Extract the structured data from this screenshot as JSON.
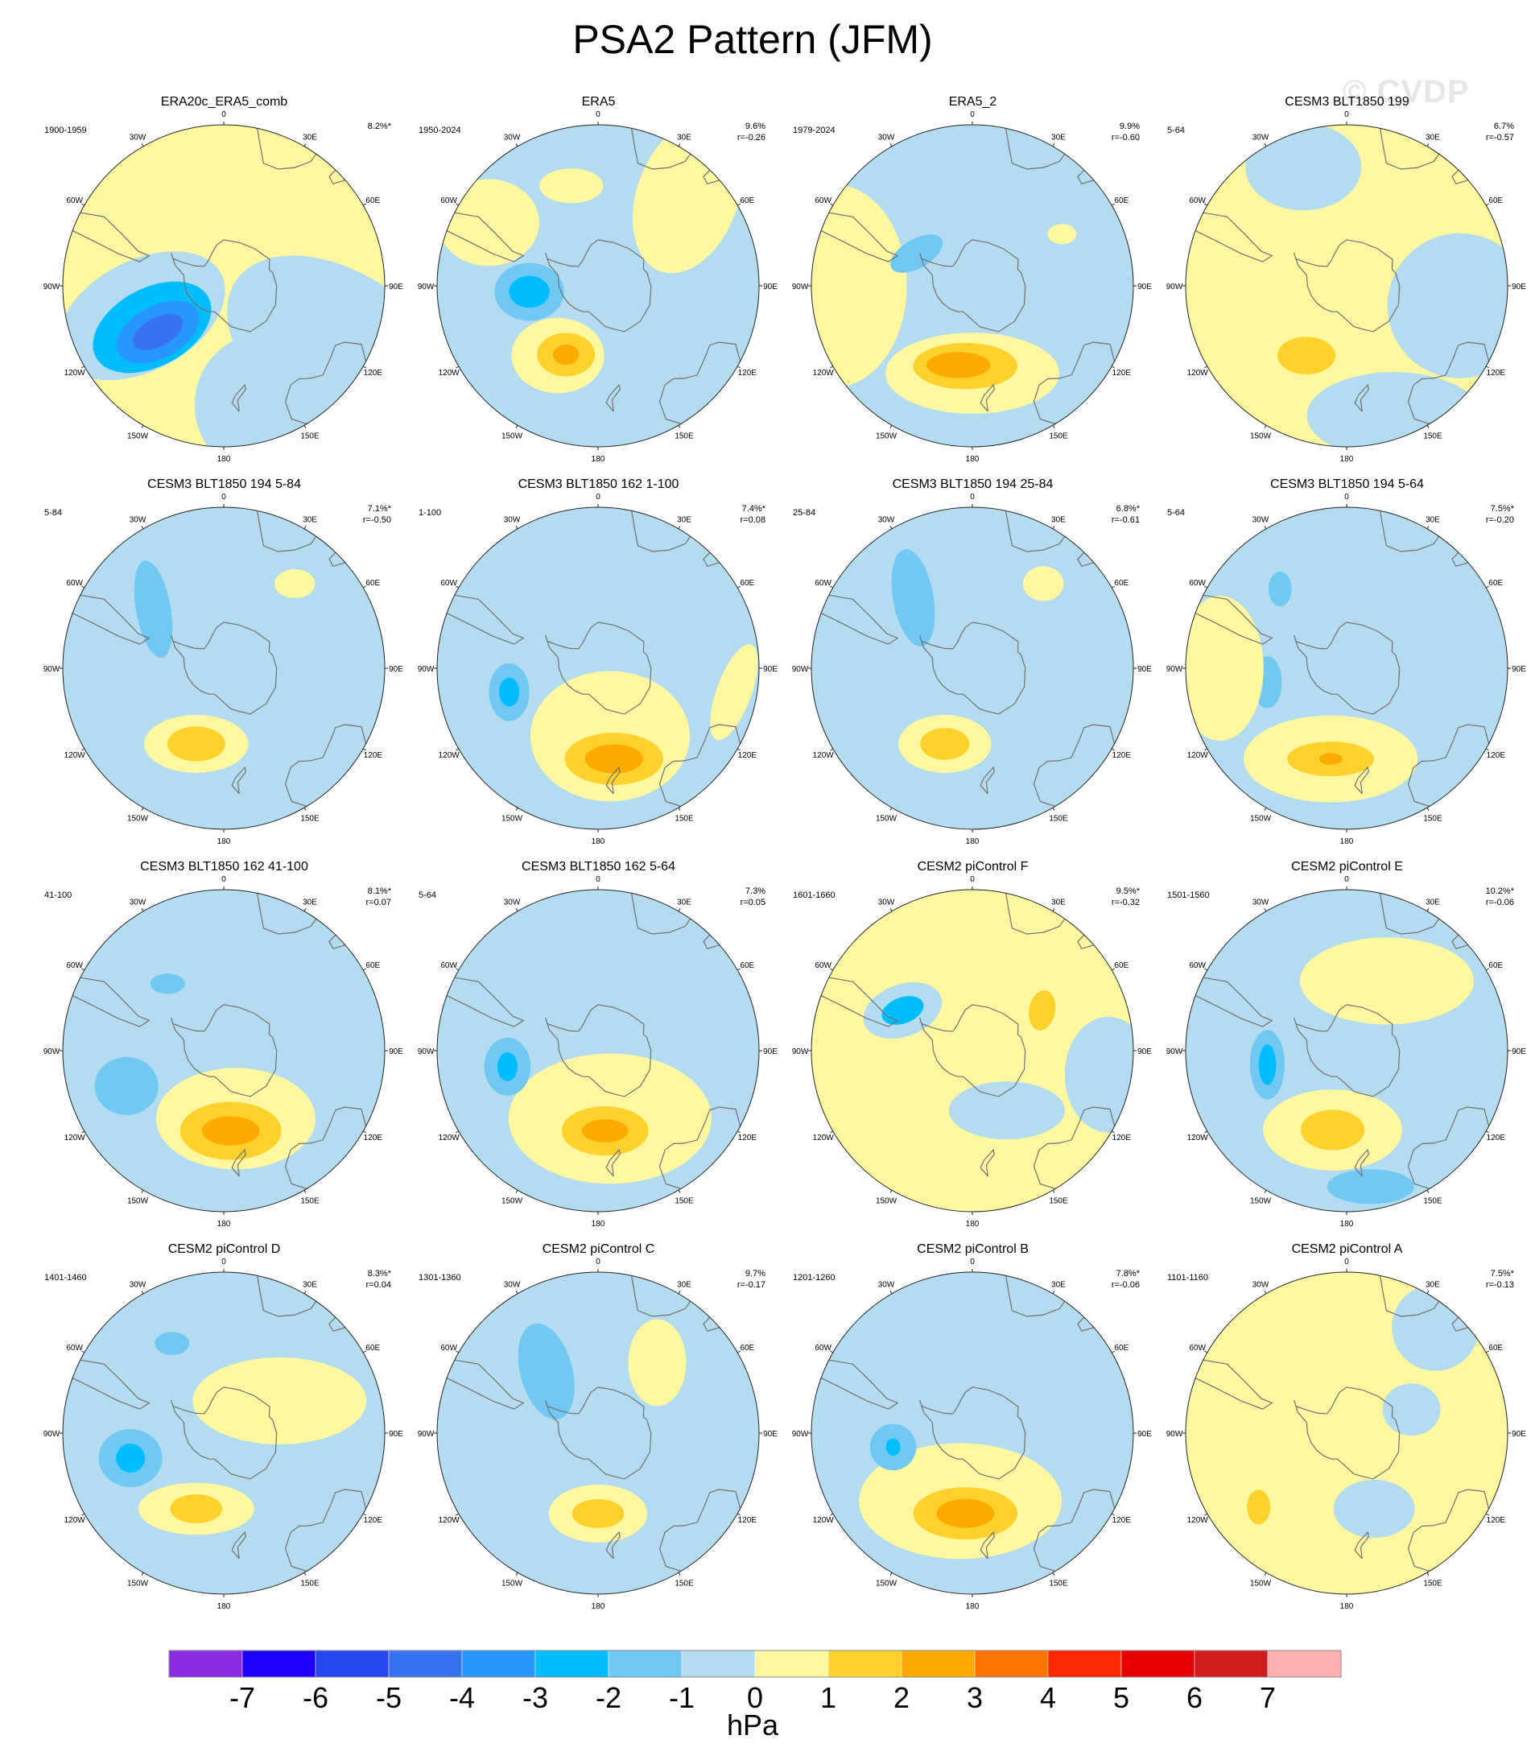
{
  "title": "PSA2 Pattern (JFM)",
  "watermark": "© CVDP",
  "colors": {
    "ocean_neutral_neg": "#b4dcf0",
    "ocean_neutral_pos": "#fff8a0",
    "coast": "#707070"
  },
  "chart_data": {
    "type": "contour-map",
    "projection": "south-polar-stereographic",
    "longitude_labels": [
      "0",
      "30E",
      "60E",
      "90E",
      "120E",
      "150E",
      "180",
      "150W",
      "120W",
      "90W",
      "60W",
      "30W"
    ],
    "colorbar": {
      "unit": "hPa",
      "ticks": [
        "-7",
        "-6",
        "-5",
        "-4",
        "-3",
        "-2",
        "-1",
        "0",
        "1",
        "2",
        "3",
        "4",
        "5",
        "6",
        "7"
      ],
      "colors": [
        "#8a2be2",
        "#1e00ff",
        "#2846f0",
        "#3773f0",
        "#2796ff",
        "#00bdff",
        "#71c8f2",
        "#b4dcf0",
        "#fff8a0",
        "#ffd12c",
        "#ffaa00",
        "#ff7300",
        "#ff2800",
        "#e60000",
        "#d01c1c",
        "#ffb1b1"
      ]
    },
    "panels": [
      {
        "title": "ERA20c_ERA5_comb",
        "period": "1900-1959",
        "pct": "8.2%*",
        "r": "",
        "base": "pos",
        "blobs": [
          {
            "lat": -52,
            "lon": -110,
            "w": 0.62,
            "h": 0.38,
            "rot": -28,
            "level": -1
          },
          {
            "lat": -54,
            "lon": -120,
            "w": 0.44,
            "h": 0.27,
            "rot": -28,
            "level": -2
          },
          {
            "lat": -55,
            "lon": -125,
            "w": 0.31,
            "h": 0.18,
            "rot": -28,
            "level": -3
          },
          {
            "lat": -55,
            "lon": -125,
            "w": 0.19,
            "h": 0.1,
            "rot": -28,
            "level": -4
          },
          {
            "lat": -30,
            "lon": 120,
            "w": 0.9,
            "h": 0.55,
            "rot": 35,
            "level": -1
          },
          {
            "lat": -35,
            "lon": 160,
            "w": 0.5,
            "h": 0.5,
            "rot": 0,
            "level": -1
          }
        ]
      },
      {
        "title": "ERA5",
        "period": "1950-2024",
        "pct": "9.6%",
        "r": "r=-0.26",
        "base": "neg",
        "blobs": [
          {
            "lat": -55,
            "lon": -150,
            "w": 0.32,
            "h": 0.26,
            "rot": 0,
            "level": 1
          },
          {
            "lat": -57,
            "lon": -155,
            "w": 0.2,
            "h": 0.15,
            "rot": 0,
            "level": 2
          },
          {
            "lat": -57,
            "lon": -155,
            "w": 0.09,
            "h": 0.07,
            "rot": 0,
            "level": 3
          },
          {
            "lat": -60,
            "lon": -95,
            "w": 0.24,
            "h": 0.2,
            "rot": 0,
            "level": -1
          },
          {
            "lat": -60,
            "lon": -95,
            "w": 0.14,
            "h": 0.11,
            "rot": 0,
            "level": -2
          },
          {
            "lat": -35,
            "lon": 45,
            "w": 0.35,
            "h": 0.55,
            "rot": 20,
            "level": 1
          },
          {
            "lat": -35,
            "lon": -60,
            "w": 0.35,
            "h": 0.3,
            "rot": 0,
            "level": 1
          },
          {
            "lat": -45,
            "lon": -15,
            "w": 0.22,
            "h": 0.12,
            "rot": 0,
            "level": 1
          }
        ]
      },
      {
        "title": "ERA5_2",
        "period": "1979-2024",
        "pct": "9.9%",
        "r": "r=-0.60",
        "base": "neg",
        "blobs": [
          {
            "lat": -52,
            "lon": -180,
            "w": 0.6,
            "h": 0.28,
            "rot": 0,
            "level": 1
          },
          {
            "lat": -55,
            "lon": -175,
            "w": 0.36,
            "h": 0.16,
            "rot": 0,
            "level": 2
          },
          {
            "lat": -55,
            "lon": -170,
            "w": 0.22,
            "h": 0.09,
            "rot": 0,
            "level": 3
          },
          {
            "lat": -30,
            "lon": -90,
            "w": 0.5,
            "h": 0.7,
            "rot": 0,
            "level": 1
          },
          {
            "lat": -62,
            "lon": -60,
            "w": 0.2,
            "h": 0.1,
            "rot": -30,
            "level": -1
          },
          {
            "lat": -45,
            "lon": 60,
            "w": 0.1,
            "h": 0.07,
            "rot": 0,
            "level": 1
          }
        ]
      },
      {
        "title": "CESM3 BLT1850 199",
        "period": "5-64",
        "pct": "6.7%",
        "r": "r=-0.57",
        "base": "pos",
        "blobs": [
          {
            "lat": -55,
            "lon": -150,
            "w": 0.34,
            "h": 0.22,
            "rot": 0,
            "level": 1
          },
          {
            "lat": -55,
            "lon": -150,
            "w": 0.2,
            "h": 0.13,
            "rot": 0,
            "level": 2
          },
          {
            "lat": -42,
            "lon": 55,
            "w": 0.16,
            "h": 0.12,
            "rot": 30,
            "level": 1
          },
          {
            "lat": -40,
            "lon": 100,
            "w": 0.5,
            "h": 0.5,
            "rot": 0,
            "level": -1
          },
          {
            "lat": -35,
            "lon": -20,
            "w": 0.4,
            "h": 0.3,
            "rot": 0,
            "level": -1
          },
          {
            "lat": -30,
            "lon": 160,
            "w": 0.6,
            "h": 0.3,
            "rot": 0,
            "level": -1
          }
        ]
      },
      {
        "title": "CESM3 BLT1850 194 5-84",
        "period": "5-84",
        "pct": "7.1%*",
        "r": "r=-0.50",
        "base": "neg",
        "blobs": [
          {
            "lat": -55,
            "lon": -160,
            "w": 0.36,
            "h": 0.2,
            "rot": 0,
            "level": 1
          },
          {
            "lat": -55,
            "lon": -160,
            "w": 0.2,
            "h": 0.12,
            "rot": 0,
            "level": 2
          },
          {
            "lat": -50,
            "lon": -50,
            "w": 0.12,
            "h": 0.34,
            "rot": -10,
            "level": -1
          },
          {
            "lat": -42,
            "lon": 40,
            "w": 0.14,
            "h": 0.1,
            "rot": 0,
            "level": 1
          }
        ]
      },
      {
        "title": "CESM3 BLT1850 162 1-100",
        "period": "1-100",
        "pct": "7.4%*",
        "r": "r=0.08",
        "base": "neg",
        "blobs": [
          {
            "lat": -60,
            "lon": 170,
            "w": 0.55,
            "h": 0.45,
            "rot": 0,
            "level": 1
          },
          {
            "lat": -50,
            "lon": 170,
            "w": 0.34,
            "h": 0.18,
            "rot": 0,
            "level": 2
          },
          {
            "lat": -50,
            "lon": 170,
            "w": 0.2,
            "h": 0.1,
            "rot": 0,
            "level": 3
          },
          {
            "lat": -50,
            "lon": -105,
            "w": 0.14,
            "h": 0.2,
            "rot": 0,
            "level": -1
          },
          {
            "lat": -50,
            "lon": -105,
            "w": 0.07,
            "h": 0.1,
            "rot": 0,
            "level": -2
          },
          {
            "lat": -30,
            "lon": 100,
            "w": 0.12,
            "h": 0.35,
            "rot": 20,
            "level": 1
          }
        ]
      },
      {
        "title": "CESM3 BLT1850 194 25-84",
        "period": "25-84",
        "pct": "6.8%*",
        "r": "r=-0.61",
        "base": "neg",
        "blobs": [
          {
            "lat": -55,
            "lon": -160,
            "w": 0.32,
            "h": 0.2,
            "rot": 0,
            "level": 1
          },
          {
            "lat": -55,
            "lon": -160,
            "w": 0.17,
            "h": 0.11,
            "rot": 0,
            "level": 2
          },
          {
            "lat": -50,
            "lon": -40,
            "w": 0.14,
            "h": 0.34,
            "rot": -10,
            "level": -1
          },
          {
            "lat": -42,
            "lon": 40,
            "w": 0.14,
            "h": 0.12,
            "rot": 0,
            "level": 1
          }
        ]
      },
      {
        "title": "CESM3 BLT1850 194 5-64",
        "period": "5-64",
        "pct": "7.5%*",
        "r": "r=-0.20",
        "base": "neg",
        "blobs": [
          {
            "lat": -50,
            "lon": -170,
            "w": 0.6,
            "h": 0.3,
            "rot": 0,
            "level": 1
          },
          {
            "lat": -50,
            "lon": -170,
            "w": 0.3,
            "h": 0.12,
            "rot": 0,
            "level": 2
          },
          {
            "lat": -50,
            "lon": -170,
            "w": 0.08,
            "h": 0.04,
            "rot": 0,
            "level": 3
          },
          {
            "lat": -55,
            "lon": -100,
            "w": 0.1,
            "h": 0.18,
            "rot": 0,
            "level": -1
          },
          {
            "lat": -45,
            "lon": -40,
            "w": 0.08,
            "h": 0.12,
            "rot": 0,
            "level": -1
          },
          {
            "lat": -35,
            "lon": -90,
            "w": 0.3,
            "h": 0.5,
            "rot": 0,
            "level": 1
          }
        ]
      },
      {
        "title": "CESM3 BLT1850 162 41-100",
        "period": "41-100",
        "pct": "8.1%*",
        "r": "r=0.07",
        "base": "neg",
        "blobs": [
          {
            "lat": -60,
            "lon": 170,
            "w": 0.55,
            "h": 0.35,
            "rot": 0,
            "level": 1
          },
          {
            "lat": -55,
            "lon": 175,
            "w": 0.35,
            "h": 0.2,
            "rot": 0,
            "level": 2
          },
          {
            "lat": -55,
            "lon": 175,
            "w": 0.2,
            "h": 0.1,
            "rot": 0,
            "level": 3
          },
          {
            "lat": -45,
            "lon": -110,
            "w": 0.22,
            "h": 0.2,
            "rot": 0,
            "level": -1
          },
          {
            "lat": -52,
            "lon": -40,
            "w": 0.12,
            "h": 0.07,
            "rot": 0,
            "level": -1
          }
        ]
      },
      {
        "title": "CESM3 BLT1850 162 5-64",
        "period": "5-64",
        "pct": "7.3%",
        "r": "r=0.05",
        "base": "neg",
        "blobs": [
          {
            "lat": -60,
            "lon": 170,
            "w": 0.7,
            "h": 0.45,
            "rot": 0,
            "level": 1
          },
          {
            "lat": -55,
            "lon": 175,
            "w": 0.3,
            "h": 0.17,
            "rot": 0,
            "level": 2
          },
          {
            "lat": -55,
            "lon": 175,
            "w": 0.16,
            "h": 0.08,
            "rot": 0,
            "level": 3
          },
          {
            "lat": -50,
            "lon": -100,
            "w": 0.16,
            "h": 0.2,
            "rot": 0,
            "level": -1
          },
          {
            "lat": -50,
            "lon": -100,
            "w": 0.07,
            "h": 0.1,
            "rot": 0,
            "level": -2
          }
        ]
      },
      {
        "title": "CESM2 piControl F",
        "period": "1601-1660",
        "pct": "9.5%*",
        "r": "r=-0.32",
        "base": "pos",
        "blobs": [
          {
            "lat": -55,
            "lon": -60,
            "w": 0.28,
            "h": 0.18,
            "rot": -20,
            "level": -1
          },
          {
            "lat": -55,
            "lon": -60,
            "w": 0.15,
            "h": 0.09,
            "rot": -20,
            "level": -2
          },
          {
            "lat": -55,
            "lon": 60,
            "w": 0.16,
            "h": 0.26,
            "rot": 10,
            "level": 1
          },
          {
            "lat": -55,
            "lon": 60,
            "w": 0.09,
            "h": 0.14,
            "rot": 10,
            "level": 2
          },
          {
            "lat": -60,
            "lon": 150,
            "w": 0.4,
            "h": 0.2,
            "rot": 0,
            "level": -1
          },
          {
            "lat": -30,
            "lon": 100,
            "w": 0.3,
            "h": 0.4,
            "rot": 0,
            "level": -1
          }
        ]
      },
      {
        "title": "CESM2 piControl E",
        "period": "1501-1560",
        "pct": "10.2%*",
        "r": "r=-0.06",
        "base": "neg",
        "blobs": [
          {
            "lat": -55,
            "lon": -170,
            "w": 0.48,
            "h": 0.28,
            "rot": 0,
            "level": 1
          },
          {
            "lat": -55,
            "lon": -170,
            "w": 0.22,
            "h": 0.14,
            "rot": 0,
            "level": 2
          },
          {
            "lat": -55,
            "lon": -100,
            "w": 0.12,
            "h": 0.24,
            "rot": 0,
            "level": -1
          },
          {
            "lat": -55,
            "lon": -100,
            "w": 0.06,
            "h": 0.14,
            "rot": 0,
            "level": -2
          },
          {
            "lat": -55,
            "lon": 30,
            "w": 0.6,
            "h": 0.3,
            "rot": 0,
            "level": 1
          },
          {
            "lat": -30,
            "lon": 170,
            "w": 0.3,
            "h": 0.12,
            "rot": 0,
            "level": -1
          }
        ]
      },
      {
        "title": "CESM2 piControl D",
        "period": "1401-1460",
        "pct": "8.3%*",
        "r": "r=0.04",
        "base": "neg",
        "blobs": [
          {
            "lat": -55,
            "lon": -160,
            "w": 0.4,
            "h": 0.18,
            "rot": 0,
            "level": 1
          },
          {
            "lat": -55,
            "lon": -160,
            "w": 0.18,
            "h": 0.1,
            "rot": 0,
            "level": 2
          },
          {
            "lat": -48,
            "lon": -105,
            "w": 0.22,
            "h": 0.2,
            "rot": 0,
            "level": -1
          },
          {
            "lat": -48,
            "lon": -105,
            "w": 0.1,
            "h": 0.1,
            "rot": 0,
            "level": -2
          },
          {
            "lat": -45,
            "lon": -30,
            "w": 0.12,
            "h": 0.08,
            "rot": 0,
            "level": -1
          },
          {
            "lat": -62,
            "lon": 60,
            "w": 0.6,
            "h": 0.3,
            "rot": 0,
            "level": 1
          }
        ]
      },
      {
        "title": "CESM2 piControl C",
        "period": "1301-1360",
        "pct": "9.7%",
        "r": "r=-0.17",
        "base": "neg",
        "blobs": [
          {
            "lat": -55,
            "lon": -180,
            "w": 0.34,
            "h": 0.2,
            "rot": 0,
            "level": 1
          },
          {
            "lat": -55,
            "lon": -180,
            "w": 0.18,
            "h": 0.1,
            "rot": 0,
            "level": 2
          },
          {
            "lat": -55,
            "lon": -40,
            "w": 0.18,
            "h": 0.34,
            "rot": -15,
            "level": -1
          },
          {
            "lat": -50,
            "lon": 40,
            "w": 0.2,
            "h": 0.3,
            "rot": 0,
            "level": 1
          }
        ]
      },
      {
        "title": "CESM2 piControl B",
        "period": "1201-1260",
        "pct": "7.8%*",
        "r": "r=-0.06",
        "base": "neg",
        "blobs": [
          {
            "lat": -60,
            "lon": -170,
            "w": 0.7,
            "h": 0.4,
            "rot": 0,
            "level": 1
          },
          {
            "lat": -55,
            "lon": -175,
            "w": 0.36,
            "h": 0.18,
            "rot": 0,
            "level": 2
          },
          {
            "lat": -55,
            "lon": -175,
            "w": 0.2,
            "h": 0.1,
            "rot": 0,
            "level": 3
          },
          {
            "lat": -55,
            "lon": -100,
            "w": 0.16,
            "h": 0.16,
            "rot": 0,
            "level": -1
          },
          {
            "lat": -55,
            "lon": -100,
            "w": 0.05,
            "h": 0.06,
            "rot": 0,
            "level": -2
          }
        ]
      },
      {
        "title": "CESM2 piControl A",
        "period": "1101-1160",
        "pct": "7.5%*",
        "r": "r=-0.13",
        "base": "pos",
        "blobs": [
          {
            "lat": -55,
            "lon": 160,
            "w": 0.28,
            "h": 0.2,
            "rot": 0,
            "level": -1
          },
          {
            "lat": -40,
            "lon": -130,
            "w": 0.18,
            "h": 0.24,
            "rot": 0,
            "level": 1
          },
          {
            "lat": -40,
            "lon": -130,
            "w": 0.08,
            "h": 0.12,
            "rot": 0,
            "level": 2
          },
          {
            "lat": -52,
            "lon": -20,
            "w": 0.12,
            "h": 0.17,
            "rot": 0,
            "level": 1
          },
          {
            "lat": -60,
            "lon": 70,
            "w": 0.2,
            "h": 0.18,
            "rot": 0,
            "level": -1
          },
          {
            "lat": -30,
            "lon": 40,
            "w": 0.3,
            "h": 0.3,
            "rot": 0,
            "level": -1
          }
        ]
      }
    ]
  }
}
